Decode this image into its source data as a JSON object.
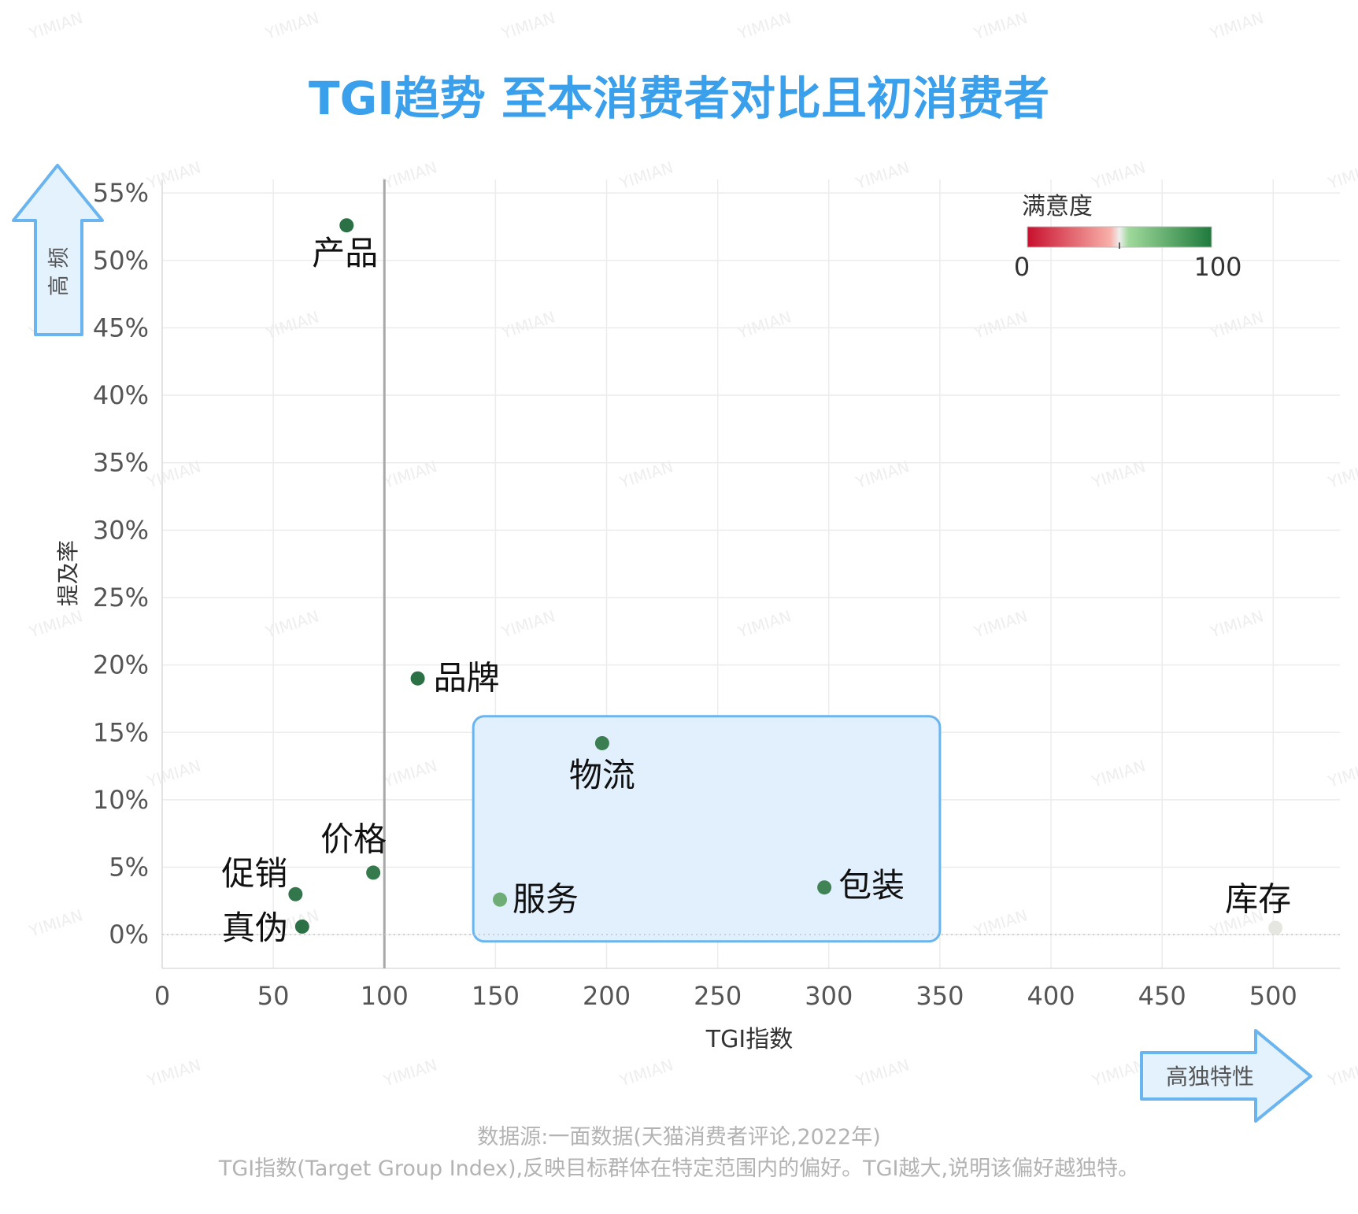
{
  "title": "TGI趋势 至本消费者对比且初消费者",
  "chart_data": {
    "type": "scatter",
    "xlabel": "TGI指数",
    "ylabel": "提及率",
    "xlim": [
      0,
      530
    ],
    "ylim": [
      -2.5,
      56
    ],
    "x_ticks": [
      0,
      50,
      100,
      150,
      200,
      250,
      300,
      350,
      400,
      450,
      500
    ],
    "y_ticks": [
      0,
      5,
      10,
      15,
      20,
      25,
      30,
      35,
      40,
      45,
      50,
      55
    ],
    "y_tick_labels": [
      "0%",
      "5%",
      "10%",
      "15%",
      "20%",
      "25%",
      "30%",
      "35%",
      "40%",
      "45%",
      "50%",
      "55%"
    ],
    "grid": true,
    "reference_line_x": 100,
    "color_scale": {
      "title": "满意度",
      "min_label": "0",
      "max_label": "100",
      "min": 0,
      "max": 100,
      "colors": [
        "#c8102e",
        "#f8b0a8",
        "#9fd99a",
        "#1e7a3c"
      ]
    },
    "points": [
      {
        "label": "产品",
        "x": 83,
        "y": 52.6,
        "satisfaction": 95
      },
      {
        "label": "品牌",
        "x": 115,
        "y": 19.0,
        "satisfaction": 95
      },
      {
        "label": "物流",
        "x": 198,
        "y": 14.2,
        "satisfaction": 90
      },
      {
        "label": "价格",
        "x": 95,
        "y": 4.6,
        "satisfaction": 92
      },
      {
        "label": "促销",
        "x": 60,
        "y": 3.0,
        "satisfaction": 93
      },
      {
        "label": "真伪",
        "x": 63,
        "y": 0.6,
        "satisfaction": 95
      },
      {
        "label": "服务",
        "x": 152,
        "y": 2.6,
        "satisfaction": 72
      },
      {
        "label": "包装",
        "x": 298,
        "y": 3.5,
        "satisfaction": 88
      },
      {
        "label": "库存",
        "x": 501,
        "y": 0.5,
        "satisfaction": 50
      }
    ],
    "highlight_region": {
      "x_range": [
        140,
        350
      ],
      "y_range": [
        -0.5,
        16.2
      ]
    },
    "annotations": {
      "y_arrow": "高 频",
      "x_arrow": "高独特性"
    }
  },
  "footer": {
    "line1": "数据源:一面数据(天猫消费者评论,2022年)",
    "line2": "TGI指数(Target Group Index),反映目标群体在特定范围内的偏好。TGI越大,说明该偏好越独特。"
  },
  "watermark": "YIMIAN",
  "colors": {
    "accent": "#3aa0ec",
    "arrow_fill": "#e3f2fd",
    "arrow_stroke": "#6ab4f0",
    "grid": "#ececec"
  }
}
